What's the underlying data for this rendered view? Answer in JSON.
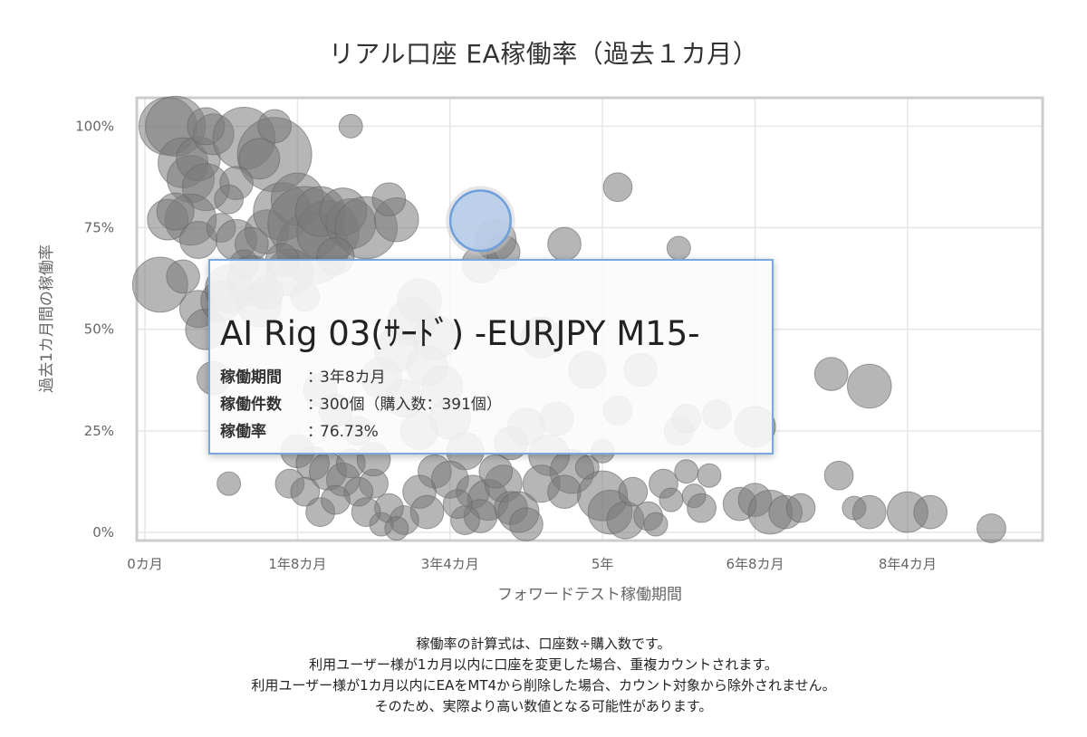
{
  "chart_data": {
    "type": "bubble",
    "title": "リアル口座 EA稼働率（過去１カ月）",
    "xlabel": "フォワードテスト稼働期間",
    "ylabel": "過去1カ月間の稼働率",
    "x_unit": "months",
    "xlim": [
      0,
      117
    ],
    "ylim": [
      -0.02,
      1.07
    ],
    "x_ticks": [
      {
        "value": 0,
        "label": "0カ月"
      },
      {
        "value": 20,
        "label": "1年8カ月"
      },
      {
        "value": 40,
        "label": "3年4カ月"
      },
      {
        "value": 60,
        "label": "5年"
      },
      {
        "value": 80,
        "label": "6年8カ月"
      },
      {
        "value": 100,
        "label": "8年4カ月"
      }
    ],
    "y_ticks": [
      {
        "value": 0,
        "label": "0%"
      },
      {
        "value": 0.25,
        "label": "25%"
      },
      {
        "value": 0.5,
        "label": "50%"
      },
      {
        "value": 0.75,
        "label": "75%"
      },
      {
        "value": 1.0,
        "label": "100%"
      }
    ],
    "grid": true,
    "colors": {
      "bubble": "#7a7a7a",
      "highlight": "#b8cde9",
      "highlight_stroke": "#6f9fdb",
      "grid": "#e6e6e6",
      "frame": "#cccccc"
    },
    "highlighted": {
      "x": 44,
      "y": 0.7673,
      "size": 391
    },
    "series": [
      {
        "points": [
          [
            3,
            1.0,
            120
          ],
          [
            4,
            1.0,
            130
          ],
          [
            5,
            0.91,
            90
          ],
          [
            6,
            0.87,
            80
          ],
          [
            7,
            0.92,
            70
          ],
          [
            8,
            0.85,
            80
          ],
          [
            9,
            0.98,
            60
          ],
          [
            6,
            0.77,
            95
          ],
          [
            3,
            0.77,
            60
          ],
          [
            4,
            0.79,
            50
          ],
          [
            7,
            0.72,
            50
          ],
          [
            2,
            0.61,
            110
          ],
          [
            5,
            0.63,
            40
          ],
          [
            7,
            0.55,
            50
          ],
          [
            8,
            0.5,
            60
          ],
          [
            8,
            1.0,
            50
          ],
          [
            10,
            0.75,
            30
          ],
          [
            13,
            0.97,
            140
          ],
          [
            17,
            0.93,
            200
          ],
          [
            15,
            0.92,
            60
          ],
          [
            12,
            0.72,
            60
          ],
          [
            16,
            0.74,
            70
          ],
          [
            18,
            0.79,
            120
          ],
          [
            20,
            0.82,
            100
          ],
          [
            22,
            0.7,
            190
          ],
          [
            21,
            0.76,
            200
          ],
          [
            24,
            0.74,
            140
          ],
          [
            23,
            0.79,
            90
          ],
          [
            14,
            0.62,
            90
          ],
          [
            19,
            0.64,
            80
          ],
          [
            15,
            0.56,
            70
          ],
          [
            12,
            0.86,
            40
          ],
          [
            10,
            0.57,
            60
          ],
          [
            17,
            1.0,
            40
          ],
          [
            27,
            0.76,
            90
          ],
          [
            26,
            0.79,
            80
          ],
          [
            29,
            0.75,
            140
          ],
          [
            33,
            0.77,
            70
          ],
          [
            32,
            0.82,
            40
          ],
          [
            11,
            0.6,
            80
          ],
          [
            18,
            0.67,
            40
          ],
          [
            25,
            0.68,
            50
          ],
          [
            14,
            0.71,
            40
          ],
          [
            27,
            1.0,
            20
          ],
          [
            13,
            0.66,
            30
          ],
          [
            21,
            0.58,
            30
          ],
          [
            9,
            0.38,
            40
          ],
          [
            11,
            0.82,
            30
          ],
          [
            16,
            0.59,
            40
          ],
          [
            35,
            0.52,
            80
          ],
          [
            36,
            0.57,
            70
          ],
          [
            33,
            0.45,
            70
          ],
          [
            37,
            0.41,
            60
          ],
          [
            31,
            0.38,
            60
          ],
          [
            38,
            0.48,
            70
          ],
          [
            39,
            0.36,
            60
          ],
          [
            34,
            0.33,
            50
          ],
          [
            40,
            0.28,
            60
          ],
          [
            36,
            0.25,
            50
          ],
          [
            42,
            0.2,
            50
          ],
          [
            38,
            0.15,
            40
          ],
          [
            40,
            0.13,
            50
          ],
          [
            43,
            0.1,
            40
          ],
          [
            45,
            0.08,
            60
          ],
          [
            47,
            0.12,
            50
          ],
          [
            48,
            0.06,
            40
          ],
          [
            49,
            0.05,
            60
          ],
          [
            50,
            0.02,
            40
          ],
          [
            44,
            0.04,
            40
          ],
          [
            42,
            0.03,
            30
          ],
          [
            41,
            0.07,
            30
          ],
          [
            46,
            0.15,
            40
          ],
          [
            48,
            0.22,
            40
          ],
          [
            36,
            0.1,
            40
          ],
          [
            37,
            0.05,
            40
          ],
          [
            34,
            0.03,
            30
          ],
          [
            32,
            0.06,
            30
          ],
          [
            30,
            0.12,
            30
          ],
          [
            31,
            0.02,
            20
          ],
          [
            33,
            0.01,
            20
          ],
          [
            20,
            0.2,
            40
          ],
          [
            22,
            0.17,
            40
          ],
          [
            24,
            0.15,
            50
          ],
          [
            26,
            0.13,
            40
          ],
          [
            28,
            0.1,
            30
          ],
          [
            19,
            0.12,
            30
          ],
          [
            21,
            0.1,
            30
          ],
          [
            23,
            0.05,
            30
          ],
          [
            25,
            0.08,
            30
          ],
          [
            27,
            0.17,
            30
          ],
          [
            29,
            0.05,
            30
          ],
          [
            30,
            0.18,
            40
          ],
          [
            28,
            0.25,
            30
          ],
          [
            25,
            0.3,
            40
          ],
          [
            23,
            0.35,
            40
          ],
          [
            11,
            0.12,
            20
          ],
          [
            46,
            0.72,
            60
          ],
          [
            44,
            0.66,
            50
          ],
          [
            47,
            0.69,
            40
          ],
          [
            55,
            0.71,
            40
          ],
          [
            62,
            0.85,
            30
          ],
          [
            70,
            0.7,
            20
          ],
          [
            52,
            0.48,
            60
          ],
          [
            58,
            0.4,
            50
          ],
          [
            54,
            0.28,
            40
          ],
          [
            50,
            0.26,
            50
          ],
          [
            53,
            0.19,
            60
          ],
          [
            56,
            0.15,
            70
          ],
          [
            52,
            0.12,
            50
          ],
          [
            55,
            0.1,
            40
          ],
          [
            60,
            0.09,
            90
          ],
          [
            61,
            0.05,
            70
          ],
          [
            63,
            0.03,
            50
          ],
          [
            64,
            0.1,
            30
          ],
          [
            66,
            0.04,
            30
          ],
          [
            67,
            0.02,
            20
          ],
          [
            68,
            0.12,
            30
          ],
          [
            69,
            0.08,
            20
          ],
          [
            71,
            0.15,
            20
          ],
          [
            72,
            0.09,
            20
          ],
          [
            74,
            0.14,
            20
          ],
          [
            73,
            0.06,
            30
          ],
          [
            70,
            0.25,
            30
          ],
          [
            71,
            0.28,
            30
          ],
          [
            75,
            0.29,
            30
          ],
          [
            80,
            0.26,
            60
          ],
          [
            78,
            0.07,
            40
          ],
          [
            80,
            0.08,
            40
          ],
          [
            82,
            0.05,
            70
          ],
          [
            84,
            0.05,
            40
          ],
          [
            86,
            0.06,
            30
          ],
          [
            90,
            0.39,
            40
          ],
          [
            91,
            0.14,
            30
          ],
          [
            95,
            0.36,
            70
          ],
          [
            93,
            0.06,
            20
          ],
          [
            95,
            0.05,
            40
          ],
          [
            100,
            0.05,
            60
          ],
          [
            103,
            0.05,
            40
          ],
          [
            111,
            0.01,
            30
          ],
          [
            60,
            0.2,
            20
          ],
          [
            58,
            0.16,
            20
          ],
          [
            65,
            0.4,
            40
          ],
          [
            62,
            0.3,
            30
          ]
        ]
      }
    ]
  },
  "tooltip": {
    "title": "AI Rig 03(ｻｰﾄﾞ) -EURJPY M15-",
    "rows": [
      {
        "label": "稼働期間",
        "value": "3年8カ月"
      },
      {
        "label": "稼働件数",
        "value": "300個（購入数：391個）"
      },
      {
        "label": "稼働率",
        "value": "76.73%"
      }
    ],
    "separator": "："
  },
  "footnote": [
    "稼働率の計算式は、口座数÷購入数です。",
    "利用ユーザー様が1カ月以内に口座を変更した場合、重複カウントされます。",
    "利用ユーザー様が1カ月以内にEAをMT4から削除した場合、カウント対象から除外されません。",
    "そのため、実際より高い数値となる可能性があります。"
  ]
}
